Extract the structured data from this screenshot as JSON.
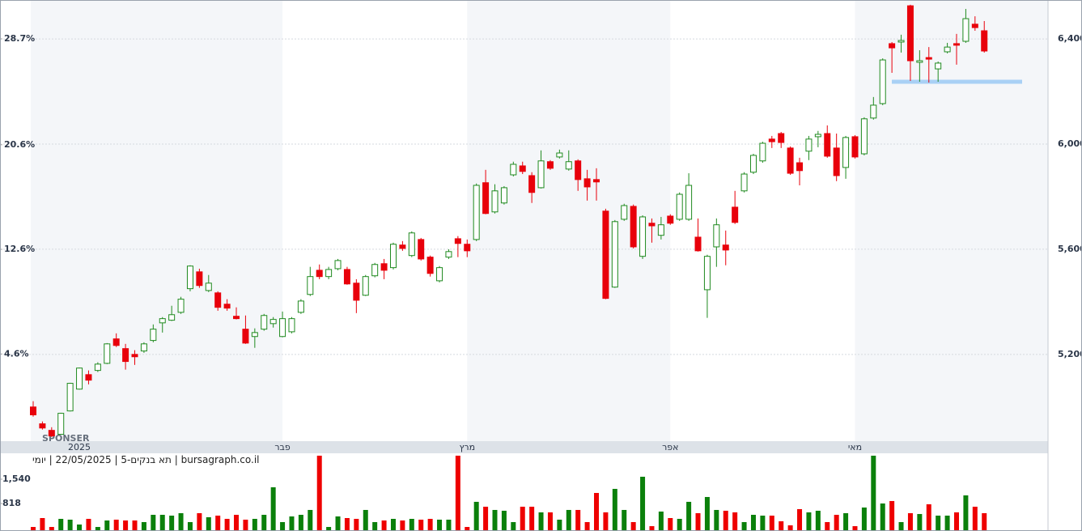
{
  "chart_data": [
    {
      "type": "candlestick",
      "watermark": "SPONSER",
      "categories": [
        null,
        null,
        null,
        null,
        null,
        "2025",
        null,
        null,
        null,
        null,
        null,
        null,
        null,
        null,
        null,
        null,
        null,
        null,
        null,
        null,
        null,
        null,
        null,
        null,
        null,
        null,
        null,
        "פבר",
        null,
        null,
        null,
        null,
        null,
        null,
        null,
        null,
        null,
        null,
        null,
        null,
        null,
        null,
        null,
        null,
        null,
        null,
        null,
        "מרץ",
        null,
        null,
        null,
        null,
        null,
        null,
        null,
        null,
        null,
        null,
        null,
        null,
        null,
        null,
        null,
        null,
        null,
        null,
        null,
        null,
        null,
        "אפר",
        null,
        null,
        null,
        null,
        null,
        null,
        null,
        null,
        null,
        null,
        null,
        null,
        null,
        null,
        null,
        null,
        null,
        null,
        null,
        "מאי",
        null,
        null,
        null,
        null,
        null,
        null,
        null,
        null,
        null,
        null,
        null,
        null,
        null,
        null
      ],
      "open": [
        5000,
        4936,
        4911,
        4896,
        4985,
        5068,
        5123,
        5139,
        5166,
        5259,
        5222,
        5200,
        5213,
        5253,
        5320,
        5330,
        5360,
        5450,
        5514,
        5443,
        5434,
        5391,
        5345,
        5296,
        5268,
        5296,
        5317,
        5268,
        5286,
        5360,
        5428,
        5520,
        5496,
        5526,
        5523,
        5471,
        5425,
        5499,
        5545,
        5530,
        5616,
        5576,
        5637,
        5570,
        5480,
        5570,
        5640,
        5619,
        5637,
        5853,
        5742,
        5776,
        5883,
        5917,
        5880,
        5834,
        5933,
        5951,
        5905,
        5936,
        5868,
        5865,
        5745,
        5456,
        5714,
        5763,
        5573,
        5699,
        5653,
        5726,
        5714,
        5714,
        5646,
        5446,
        5609,
        5616,
        5760,
        5822,
        5893,
        5936,
        6019,
        6040,
        5985,
        5929,
        5973,
        6028,
        6040,
        5985,
        5911,
        6028,
        5963,
        6099,
        6154,
        6382,
        6388,
        6526,
        6311,
        6329,
        6286,
        6351,
        6382,
        6391,
        6456,
        6431
      ],
      "high": [
        5022,
        4945,
        4923,
        4978,
        5092,
        5150,
        5139,
        5170,
        5243,
        5280,
        5240,
        5216,
        5246,
        5314,
        5342,
        5385,
        5419,
        5539,
        5526,
        5502,
        5440,
        5410,
        5379,
        5348,
        5299,
        5354,
        5342,
        5363,
        5342,
        5410,
        5533,
        5542,
        5533,
        5563,
        5533,
        5486,
        5502,
        5548,
        5563,
        5625,
        5631,
        5668,
        5643,
        5576,
        5536,
        5600,
        5650,
        5637,
        5850,
        5902,
        5847,
        5840,
        5933,
        5933,
        5893,
        5976,
        5939,
        5979,
        5976,
        5942,
        5902,
        5908,
        5754,
        5711,
        5773,
        5770,
        5729,
        5717,
        5723,
        5733,
        5816,
        5889,
        5717,
        5579,
        5717,
        5671,
        5822,
        5893,
        5963,
        6009,
        6031,
        6046,
        5991,
        5948,
        6031,
        6050,
        6071,
        6040,
        6031,
        6034,
        6102,
        6179,
        6326,
        6388,
        6416,
        6530,
        6357,
        6369,
        6314,
        6385,
        6419,
        6514,
        6486,
        6468
      ],
      "low": [
        4963,
        4914,
        4885,
        4894,
        4983,
        5066,
        5086,
        5133,
        5163,
        5228,
        5142,
        5160,
        5206,
        5246,
        5283,
        5327,
        5354,
        5440,
        5453,
        5437,
        5366,
        5366,
        5333,
        5240,
        5225,
        5290,
        5302,
        5265,
        5280,
        5354,
        5422,
        5486,
        5486,
        5520,
        5465,
        5357,
        5422,
        5493,
        5486,
        5523,
        5594,
        5570,
        5557,
        5496,
        5474,
        5563,
        5570,
        5570,
        5631,
        5733,
        5736,
        5770,
        5877,
        5886,
        5776,
        5831,
        5902,
        5945,
        5899,
        5822,
        5785,
        5785,
        5410,
        5453,
        5708,
        5603,
        5563,
        5625,
        5637,
        5693,
        5708,
        5708,
        5591,
        5339,
        5533,
        5539,
        5696,
        5816,
        5886,
        5929,
        5985,
        5985,
        5883,
        5843,
        5939,
        5988,
        5948,
        5859,
        5868,
        5945,
        5957,
        6093,
        6148,
        6271,
        6348,
        6240,
        6237,
        6234,
        6237,
        6345,
        6302,
        6385,
        6431,
        6348
      ],
      "close": [
        4970,
        4920,
        4890,
        4976,
        5090,
        5148,
        5102,
        5163,
        5240,
        5234,
        5173,
        5191,
        5240,
        5296,
        5336,
        5351,
        5410,
        5536,
        5462,
        5471,
        5379,
        5376,
        5336,
        5243,
        5283,
        5348,
        5333,
        5336,
        5336,
        5403,
        5496,
        5496,
        5523,
        5557,
        5468,
        5406,
        5496,
        5542,
        5520,
        5619,
        5603,
        5662,
        5563,
        5508,
        5530,
        5591,
        5622,
        5594,
        5843,
        5736,
        5822,
        5834,
        5923,
        5896,
        5816,
        5936,
        5908,
        5966,
        5933,
        5865,
        5837,
        5856,
        5413,
        5705,
        5766,
        5609,
        5723,
        5689,
        5693,
        5699,
        5809,
        5843,
        5594,
        5573,
        5693,
        5597,
        5702,
        5886,
        5957,
        6003,
        6009,
        6006,
        5889,
        5899,
        6019,
        6037,
        5954,
        5880,
        6025,
        5951,
        6096,
        6148,
        6320,
        6366,
        6394,
        6317,
        6317,
        6323,
        6308,
        6369,
        6376,
        6477,
        6443,
        6354
      ],
      "up_color": "#1f8a1f",
      "down_color": "#e8000b",
      "ylim": [
        4870,
        6548
      ],
      "yticks": [
        {
          "value": 5200,
          "label": "5,200"
        },
        {
          "value": 5600,
          "label": "5,600"
        },
        {
          "value": 6000,
          "label": "6,000"
        },
        {
          "value": 6400,
          "label": "6,400"
        }
      ],
      "y2lim": [
        -2.07,
        31.67
      ],
      "y2ticks": [
        {
          "value": 4.6,
          "label": "4.6%"
        },
        {
          "value": 12.6,
          "label": "12.6%"
        },
        {
          "value": 20.6,
          "label": "20.6%"
        },
        {
          "value": 28.7,
          "label": "28.7%"
        }
      ],
      "grid": true,
      "reference_line": {
        "value": 6237,
        "color": "#a9d0f5"
      }
    },
    {
      "type": "bar",
      "source": "bursagraph.co.il | תא בנקים-5 | 22/05/2025 | יומי",
      "values": [
        120,
        385,
        120,
        361,
        337,
        193,
        361,
        120,
        313,
        337,
        313,
        313,
        265,
        481,
        481,
        457,
        530,
        265,
        530,
        409,
        457,
        361,
        481,
        337,
        361,
        481,
        1300,
        265,
        433,
        481,
        626,
        2239,
        120,
        433,
        385,
        361,
        626,
        265,
        313,
        361,
        313,
        361,
        337,
        361,
        337,
        337,
        2239,
        120,
        867,
        722,
        626,
        602,
        265,
        722,
        722,
        554,
        554,
        337,
        626,
        626,
        265,
        1131,
        554,
        1252,
        626,
        265,
        1613,
        144,
        578,
        385,
        361,
        867,
        530,
        1011,
        626,
        602,
        554,
        265,
        481,
        457,
        457,
        289,
        168,
        650,
        554,
        602,
        265,
        481,
        530,
        144,
        698,
        2239,
        818,
        891,
        265,
        530,
        505,
        794,
        457,
        457,
        554,
        1059,
        722,
        530
      ],
      "up_color": "#0b800b",
      "down_color": "#ee0000",
      "ylim": [
        0,
        2310
      ],
      "yticks": [
        818,
        {
          "value": 1540,
          "label": "1,540"
        }
      ]
    }
  ]
}
